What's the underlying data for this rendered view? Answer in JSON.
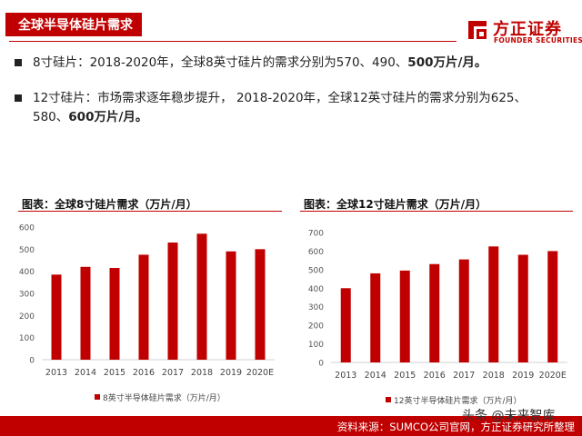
{
  "header": {
    "title": "全球半导体硅片需求",
    "logo_cn": "方正证券",
    "logo_en": "FOUNDER SECURITIES"
  },
  "bullets": [
    {
      "prefix": "8寸硅片：2018-2020年，全球8英寸硅片的需求分别为570、490、",
      "bold": "500万片/月。"
    },
    {
      "prefix": "12寸硅片：市场需求逐年稳步提升， 2018-2020年，全球12英寸硅片的需求分别为625、580、",
      "bold": "600万片/月。"
    }
  ],
  "colors": {
    "accent": "#c00000"
  },
  "chart_data": [
    {
      "type": "bar",
      "title": "图表：全球8寸硅片需求（万片/月）",
      "categories": [
        "2013",
        "2014",
        "2015",
        "2016",
        "2017",
        "2018",
        "2019",
        "2020E"
      ],
      "series": [
        {
          "name": "8英寸半导体硅片需求（万片/月）",
          "values": [
            385,
            420,
            415,
            475,
            530,
            570,
            490,
            500
          ],
          "color": "#c00000"
        }
      ],
      "yticks": [
        "0",
        "100",
        "200",
        "300",
        "400",
        "500",
        "600"
      ],
      "ylim": [
        0,
        600
      ],
      "legend_position": "bottom",
      "grid": false
    },
    {
      "type": "bar",
      "title": "图表：全球12寸硅片需求（万片/月）",
      "categories": [
        "2013",
        "2014",
        "2015",
        "2016",
        "2017",
        "2018",
        "2019",
        "2020E"
      ],
      "series": [
        {
          "name": "12英寸半导体硅片需求（万片/月）",
          "values": [
            400,
            480,
            495,
            530,
            555,
            625,
            580,
            600
          ],
          "color": "#c00000"
        }
      ],
      "yticks": [
        "0",
        "100",
        "200",
        "300",
        "400",
        "500",
        "600",
        "700"
      ],
      "ylim": [
        0,
        700
      ],
      "legend_position": "bottom",
      "grid": false
    }
  ],
  "footer": {
    "source": "资料来源：SUMCO公司官网，方正证券研究所整理",
    "watermark": "头条 @未来智库"
  }
}
